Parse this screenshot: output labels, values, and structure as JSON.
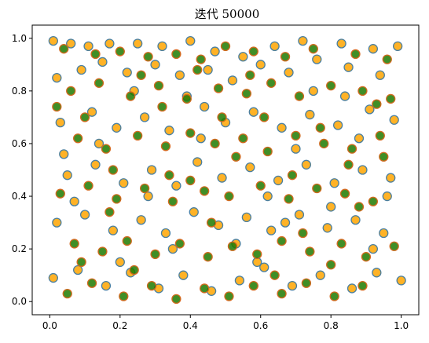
{
  "chart_data": {
    "type": "scatter",
    "title": "迭代 50000",
    "xlabel": "",
    "ylabel": "",
    "xlim": [
      -0.05,
      1.05
    ],
    "ylim": [
      -0.05,
      1.05
    ],
    "x_ticks": [
      "0.0",
      "0.2",
      "0.4",
      "0.6",
      "0.8",
      "1.0"
    ],
    "y_ticks": [
      "0.0",
      "0.2",
      "0.4",
      "0.6",
      "0.8",
      "1.0"
    ],
    "grid": false,
    "legend": false,
    "series": [
      {
        "marker_fill": "#ffa500",
        "marker_edge": "#4a7fa0",
        "points": [
          [
            0.01,
            0.99
          ],
          [
            0.06,
            0.98
          ],
          [
            0.11,
            0.97
          ],
          [
            0.17,
            0.98
          ],
          [
            0.25,
            0.98
          ],
          [
            0.32,
            0.97
          ],
          [
            0.4,
            0.99
          ],
          [
            0.47,
            0.95
          ],
          [
            0.55,
            0.93
          ],
          [
            0.64,
            0.97
          ],
          [
            0.72,
            0.99
          ],
          [
            0.83,
            0.98
          ],
          [
            0.92,
            0.96
          ],
          [
            0.99,
            0.97
          ],
          [
            0.02,
            0.85
          ],
          [
            0.09,
            0.88
          ],
          [
            0.15,
            0.91
          ],
          [
            0.22,
            0.87
          ],
          [
            0.3,
            0.9
          ],
          [
            0.37,
            0.86
          ],
          [
            0.45,
            0.88
          ],
          [
            0.52,
            0.84
          ],
          [
            0.6,
            0.9
          ],
          [
            0.68,
            0.87
          ],
          [
            0.76,
            0.92
          ],
          [
            0.85,
            0.89
          ],
          [
            0.94,
            0.86
          ],
          [
            0.03,
            0.68
          ],
          [
            0.12,
            0.72
          ],
          [
            0.19,
            0.66
          ],
          [
            0.27,
            0.7
          ],
          [
            0.34,
            0.65
          ],
          [
            0.44,
            0.74
          ],
          [
            0.5,
            0.68
          ],
          [
            0.58,
            0.72
          ],
          [
            0.66,
            0.66
          ],
          [
            0.74,
            0.71
          ],
          [
            0.82,
            0.67
          ],
          [
            0.91,
            0.73
          ],
          [
            0.98,
            0.69
          ],
          [
            0.05,
            0.48
          ],
          [
            0.13,
            0.52
          ],
          [
            0.21,
            0.45
          ],
          [
            0.29,
            0.5
          ],
          [
            0.36,
            0.44
          ],
          [
            0.42,
            0.53
          ],
          [
            0.49,
            0.47
          ],
          [
            0.57,
            0.51
          ],
          [
            0.65,
            0.46
          ],
          [
            0.73,
            0.52
          ],
          [
            0.81,
            0.45
          ],
          [
            0.89,
            0.5
          ],
          [
            0.97,
            0.47
          ],
          [
            0.02,
            0.3
          ],
          [
            0.1,
            0.33
          ],
          [
            0.18,
            0.27
          ],
          [
            0.26,
            0.31
          ],
          [
            0.33,
            0.26
          ],
          [
            0.41,
            0.34
          ],
          [
            0.48,
            0.29
          ],
          [
            0.56,
            0.32
          ],
          [
            0.63,
            0.27
          ],
          [
            0.71,
            0.33
          ],
          [
            0.79,
            0.28
          ],
          [
            0.87,
            0.31
          ],
          [
            0.95,
            0.26
          ],
          [
            0.01,
            0.09
          ],
          [
            0.08,
            0.12
          ],
          [
            0.16,
            0.06
          ],
          [
            0.23,
            0.11
          ],
          [
            0.31,
            0.05
          ],
          [
            0.38,
            0.1
          ],
          [
            0.46,
            0.04
          ],
          [
            0.54,
            0.08
          ],
          [
            0.61,
            0.13
          ],
          [
            0.69,
            0.06
          ],
          [
            0.77,
            0.1
          ],
          [
            0.86,
            0.05
          ],
          [
            0.93,
            0.11
          ],
          [
            1.0,
            0.08
          ],
          [
            0.07,
            0.38
          ],
          [
            0.14,
            0.6
          ],
          [
            0.24,
            0.8
          ],
          [
            0.35,
            0.2
          ],
          [
            0.43,
            0.62
          ],
          [
            0.53,
            0.22
          ],
          [
            0.62,
            0.4
          ],
          [
            0.7,
            0.58
          ],
          [
            0.8,
            0.36
          ],
          [
            0.88,
            0.62
          ],
          [
            0.96,
            0.4
          ],
          [
            0.04,
            0.56
          ],
          [
            0.2,
            0.15
          ],
          [
            0.39,
            0.78
          ],
          [
            0.59,
            0.15
          ],
          [
            0.75,
            0.8
          ],
          [
            0.92,
            0.2
          ],
          [
            0.28,
            0.4
          ],
          [
            0.67,
            0.3
          ],
          [
            0.84,
            0.78
          ]
        ]
      },
      {
        "marker_fill": "#1f7a00",
        "marker_edge": "#d2691e",
        "points": [
          [
            0.04,
            0.96
          ],
          [
            0.13,
            0.94
          ],
          [
            0.2,
            0.95
          ],
          [
            0.28,
            0.93
          ],
          [
            0.36,
            0.94
          ],
          [
            0.43,
            0.92
          ],
          [
            0.5,
            0.97
          ],
          [
            0.58,
            0.95
          ],
          [
            0.67,
            0.93
          ],
          [
            0.75,
            0.96
          ],
          [
            0.87,
            0.94
          ],
          [
            0.96,
            0.92
          ],
          [
            0.06,
            0.8
          ],
          [
            0.14,
            0.83
          ],
          [
            0.23,
            0.78
          ],
          [
            0.31,
            0.82
          ],
          [
            0.39,
            0.77
          ],
          [
            0.48,
            0.81
          ],
          [
            0.56,
            0.79
          ],
          [
            0.63,
            0.83
          ],
          [
            0.71,
            0.78
          ],
          [
            0.8,
            0.82
          ],
          [
            0.89,
            0.8
          ],
          [
            0.97,
            0.77
          ],
          [
            0.08,
            0.62
          ],
          [
            0.16,
            0.58
          ],
          [
            0.25,
            0.63
          ],
          [
            0.33,
            0.59
          ],
          [
            0.4,
            0.64
          ],
          [
            0.47,
            0.6
          ],
          [
            0.55,
            0.62
          ],
          [
            0.62,
            0.57
          ],
          [
            0.7,
            0.63
          ],
          [
            0.78,
            0.6
          ],
          [
            0.86,
            0.58
          ],
          [
            0.94,
            0.63
          ],
          [
            0.03,
            0.41
          ],
          [
            0.11,
            0.44
          ],
          [
            0.19,
            0.39
          ],
          [
            0.27,
            0.43
          ],
          [
            0.35,
            0.38
          ],
          [
            0.44,
            0.42
          ],
          [
            0.51,
            0.4
          ],
          [
            0.6,
            0.44
          ],
          [
            0.68,
            0.39
          ],
          [
            0.76,
            0.43
          ],
          [
            0.84,
            0.41
          ],
          [
            0.92,
            0.38
          ],
          [
            0.07,
            0.22
          ],
          [
            0.15,
            0.19
          ],
          [
            0.22,
            0.23
          ],
          [
            0.3,
            0.18
          ],
          [
            0.37,
            0.22
          ],
          [
            0.45,
            0.17
          ],
          [
            0.52,
            0.21
          ],
          [
            0.59,
            0.18
          ],
          [
            0.66,
            0.23
          ],
          [
            0.74,
            0.19
          ],
          [
            0.83,
            0.22
          ],
          [
            0.9,
            0.17
          ],
          [
            0.98,
            0.21
          ],
          [
            0.05,
            0.03
          ],
          [
            0.12,
            0.07
          ],
          [
            0.21,
            0.02
          ],
          [
            0.29,
            0.06
          ],
          [
            0.36,
            0.01
          ],
          [
            0.44,
            0.05
          ],
          [
            0.51,
            0.02
          ],
          [
            0.58,
            0.06
          ],
          [
            0.66,
            0.03
          ],
          [
            0.73,
            0.07
          ],
          [
            0.81,
            0.02
          ],
          [
            0.89,
            0.06
          ],
          [
            0.1,
            0.7
          ],
          [
            0.18,
            0.5
          ],
          [
            0.26,
            0.86
          ],
          [
            0.34,
            0.48
          ],
          [
            0.42,
            0.88
          ],
          [
            0.53,
            0.55
          ],
          [
            0.61,
            0.7
          ],
          [
            0.69,
            0.48
          ],
          [
            0.77,
            0.66
          ],
          [
            0.85,
            0.52
          ],
          [
            0.93,
            0.75
          ],
          [
            0.02,
            0.74
          ],
          [
            0.17,
            0.34
          ],
          [
            0.32,
            0.74
          ],
          [
            0.46,
            0.3
          ],
          [
            0.57,
            0.86
          ],
          [
            0.72,
            0.26
          ],
          [
            0.88,
            0.36
          ],
          [
            0.24,
            0.12
          ],
          [
            0.4,
            0.46
          ],
          [
            0.64,
            0.1
          ],
          [
            0.8,
            0.14
          ],
          [
            0.95,
            0.55
          ],
          [
            0.09,
            0.15
          ],
          [
            0.49,
            0.7
          ]
        ]
      }
    ]
  }
}
